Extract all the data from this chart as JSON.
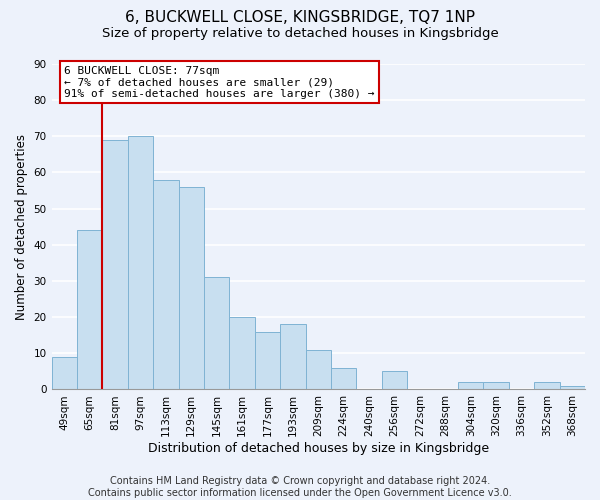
{
  "title": "6, BUCKWELL CLOSE, KINGSBRIDGE, TQ7 1NP",
  "subtitle": "Size of property relative to detached houses in Kingsbridge",
  "xlabel": "Distribution of detached houses by size in Kingsbridge",
  "ylabel": "Number of detached properties",
  "bar_labels": [
    "49sqm",
    "65sqm",
    "81sqm",
    "97sqm",
    "113sqm",
    "129sqm",
    "145sqm",
    "161sqm",
    "177sqm",
    "193sqm",
    "209sqm",
    "224sqm",
    "240sqm",
    "256sqm",
    "272sqm",
    "288sqm",
    "304sqm",
    "320sqm",
    "336sqm",
    "352sqm",
    "368sqm"
  ],
  "bar_values": [
    9,
    44,
    69,
    70,
    58,
    56,
    31,
    20,
    16,
    18,
    11,
    6,
    0,
    5,
    0,
    0,
    2,
    2,
    0,
    2,
    1
  ],
  "bar_color": "#c8dff0",
  "bar_edge_color": "#7fb3d3",
  "vline_color": "#cc0000",
  "annotation_title": "6 BUCKWELL CLOSE: 77sqm",
  "annotation_line1": "← 7% of detached houses are smaller (29)",
  "annotation_line2": "91% of semi-detached houses are larger (380) →",
  "annotation_box_color": "#ffffff",
  "annotation_box_edge_color": "#cc0000",
  "ylim": [
    0,
    90
  ],
  "yticks": [
    0,
    10,
    20,
    30,
    40,
    50,
    60,
    70,
    80,
    90
  ],
  "footer1": "Contains HM Land Registry data © Crown copyright and database right 2024.",
  "footer2": "Contains public sector information licensed under the Open Government Licence v3.0.",
  "background_color": "#edf2fb",
  "grid_color": "#ffffff",
  "title_fontsize": 11,
  "subtitle_fontsize": 9.5,
  "ylabel_fontsize": 8.5,
  "xlabel_fontsize": 9,
  "tick_fontsize": 7.5,
  "footer_fontsize": 7,
  "annot_fontsize": 8
}
